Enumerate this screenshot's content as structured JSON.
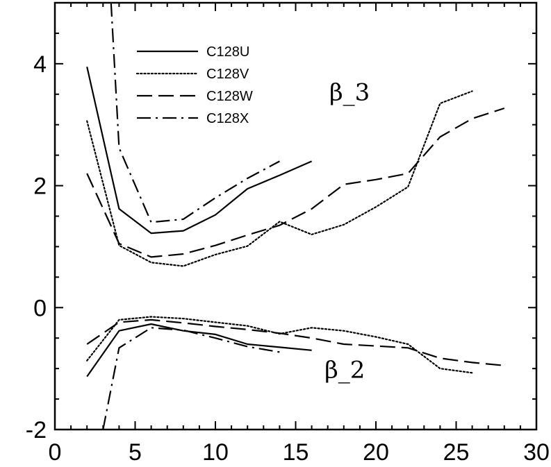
{
  "chart_data": {
    "type": "line",
    "title": "",
    "xlabel": "",
    "ylabel": "",
    "xlim": [
      0,
      30
    ],
    "ylim": [
      -2,
      5
    ],
    "xticks": [
      0,
      5,
      10,
      15,
      20,
      25,
      30
    ],
    "yticks": [
      -2,
      0,
      2,
      4
    ],
    "grid": false,
    "legend_placement": "top-left",
    "annotations": [
      {
        "text": "β_3",
        "x": 17.1,
        "y": 3.4
      },
      {
        "text": "β_2",
        "x": 16.8,
        "y": -1.15
      }
    ],
    "series": [
      {
        "name": "C128U",
        "style": "solid",
        "group": "beta_3",
        "x": [
          2,
          4,
          6,
          8,
          10,
          12,
          14,
          16
        ],
        "y": [
          3.95,
          1.62,
          1.22,
          1.26,
          1.52,
          1.95,
          2.17,
          2.4
        ]
      },
      {
        "name": "C128V",
        "style": "dotted",
        "group": "beta_3",
        "x": [
          2,
          4,
          6,
          8,
          10,
          12,
          14,
          16,
          18,
          20,
          22,
          24,
          26
        ],
        "y": [
          3.06,
          1.02,
          0.74,
          0.68,
          0.87,
          1.01,
          1.41,
          1.2,
          1.36,
          1.65,
          1.98,
          3.35,
          3.55
        ]
      },
      {
        "name": "C128W",
        "style": "dashed",
        "group": "beta_3",
        "x": [
          2,
          4,
          6,
          8,
          10,
          12,
          14,
          16,
          18,
          20,
          22,
          24,
          26,
          28
        ],
        "y": [
          2.2,
          1.05,
          0.83,
          0.88,
          1.02,
          1.19,
          1.35,
          1.62,
          2.02,
          2.1,
          2.2,
          2.8,
          3.1,
          3.27
        ]
      },
      {
        "name": "C128X",
        "style": "dash-dot",
        "group": "beta_3",
        "x": [
          3.5,
          4,
          6,
          8,
          10,
          12,
          14
        ],
        "y": [
          5.0,
          2.62,
          1.4,
          1.45,
          1.8,
          2.12,
          2.4
        ]
      },
      {
        "name": "C128U",
        "style": "solid",
        "group": "beta_2",
        "x": [
          2,
          4,
          6,
          8,
          10,
          12,
          14,
          16
        ],
        "y": [
          -1.13,
          -0.38,
          -0.27,
          -0.38,
          -0.44,
          -0.6,
          -0.65,
          -0.7
        ]
      },
      {
        "name": "C128V",
        "style": "dotted",
        "group": "beta_2",
        "x": [
          2,
          4,
          6,
          8,
          10,
          12,
          14,
          16,
          18,
          20,
          22,
          24,
          26
        ],
        "y": [
          -0.87,
          -0.2,
          -0.15,
          -0.18,
          -0.24,
          -0.3,
          -0.43,
          -0.33,
          -0.38,
          -0.48,
          -0.6,
          -1.0,
          -1.07
        ]
      },
      {
        "name": "C128W",
        "style": "dashed",
        "group": "beta_2",
        "x": [
          2,
          4,
          6,
          8,
          10,
          12,
          14,
          16,
          18,
          20,
          22,
          24,
          26,
          28
        ],
        "y": [
          -0.6,
          -0.24,
          -0.2,
          -0.25,
          -0.31,
          -0.36,
          -0.42,
          -0.5,
          -0.6,
          -0.63,
          -0.66,
          -0.83,
          -0.9,
          -0.95
        ]
      },
      {
        "name": "C128X",
        "style": "dash-dot",
        "group": "beta_2",
        "x": [
          3,
          4,
          6,
          8,
          10,
          12,
          14
        ],
        "y": [
          -2.0,
          -0.66,
          -0.33,
          -0.37,
          -0.5,
          -0.64,
          -0.73
        ]
      }
    ],
    "legend": [
      {
        "label": "C128U",
        "style": "solid"
      },
      {
        "label": "C128V",
        "style": "dotted"
      },
      {
        "label": "C128W",
        "style": "dashed"
      },
      {
        "label": "C128X",
        "style": "dash-dot"
      }
    ]
  }
}
